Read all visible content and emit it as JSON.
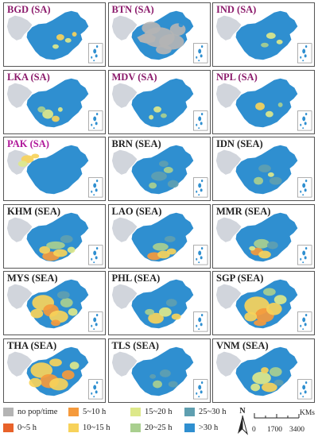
{
  "panels": [
    {
      "label": "BGD (SA)",
      "label_color": "#8b1a6b",
      "map": "bgd"
    },
    {
      "label": "BTN (SA)",
      "label_color": "#8b1a6b",
      "map": "btn"
    },
    {
      "label": "IND (SA)",
      "label_color": "#8b1a6b",
      "map": "ind"
    },
    {
      "label": "LKA (SA)",
      "label_color": "#8b1a6b",
      "map": "lka"
    },
    {
      "label": "MDV (SA)",
      "label_color": "#8b1a6b",
      "map": "mdv"
    },
    {
      "label": "NPL (SA)",
      "label_color": "#8b1a6b",
      "map": "npl"
    },
    {
      "label": "PAK (SA)",
      "label_color": "#b0179a",
      "map": "pak"
    },
    {
      "label": "BRN (SEA)",
      "label_color": "#222222",
      "map": "brn"
    },
    {
      "label": "IDN (SEA)",
      "label_color": "#222222",
      "map": "idn"
    },
    {
      "label": "KHM (SEA)",
      "label_color": "#222222",
      "map": "khm"
    },
    {
      "label": "LAO (SEA)",
      "label_color": "#222222",
      "map": "lao"
    },
    {
      "label": "MMR (SEA)",
      "label_color": "#222222",
      "map": "mmr"
    },
    {
      "label": "MYS (SEA)",
      "label_color": "#222222",
      "map": "mys"
    },
    {
      "label": "PHL (SEA)",
      "label_color": "#222222",
      "map": "phl"
    },
    {
      "label": "SGP (SEA)",
      "label_color": "#222222",
      "map": "sgp"
    },
    {
      "label": "THA (SEA)",
      "label_color": "#222222",
      "map": "tha"
    },
    {
      "label": "TLS (SEA)",
      "label_color": "#222222",
      "map": "tls"
    },
    {
      "label": "VNM (SEA)",
      "label_color": "#222222",
      "map": "vnm"
    }
  ],
  "legend": {
    "items": [
      {
        "label": "no pop/time",
        "color": "#b4b4b4"
      },
      {
        "label": "0~5 h",
        "color": "#e8622a"
      },
      {
        "label": "5~10 h",
        "color": "#f59a3c"
      },
      {
        "label": "10~15 h",
        "color": "#f7d25a"
      },
      {
        "label": "15~20 h",
        "color": "#dde88a"
      },
      {
        "label": "20~25 h",
        "color": "#a9cf8f"
      },
      {
        "label": "25~30 h",
        "color": "#5f9fb0"
      },
      {
        "label": ">30 h",
        "color": "#2f8fd0"
      }
    ],
    "north_label": "N",
    "scale_labels": [
      "0",
      "1700",
      "3400"
    ],
    "scale_unit": "KMs"
  }
}
